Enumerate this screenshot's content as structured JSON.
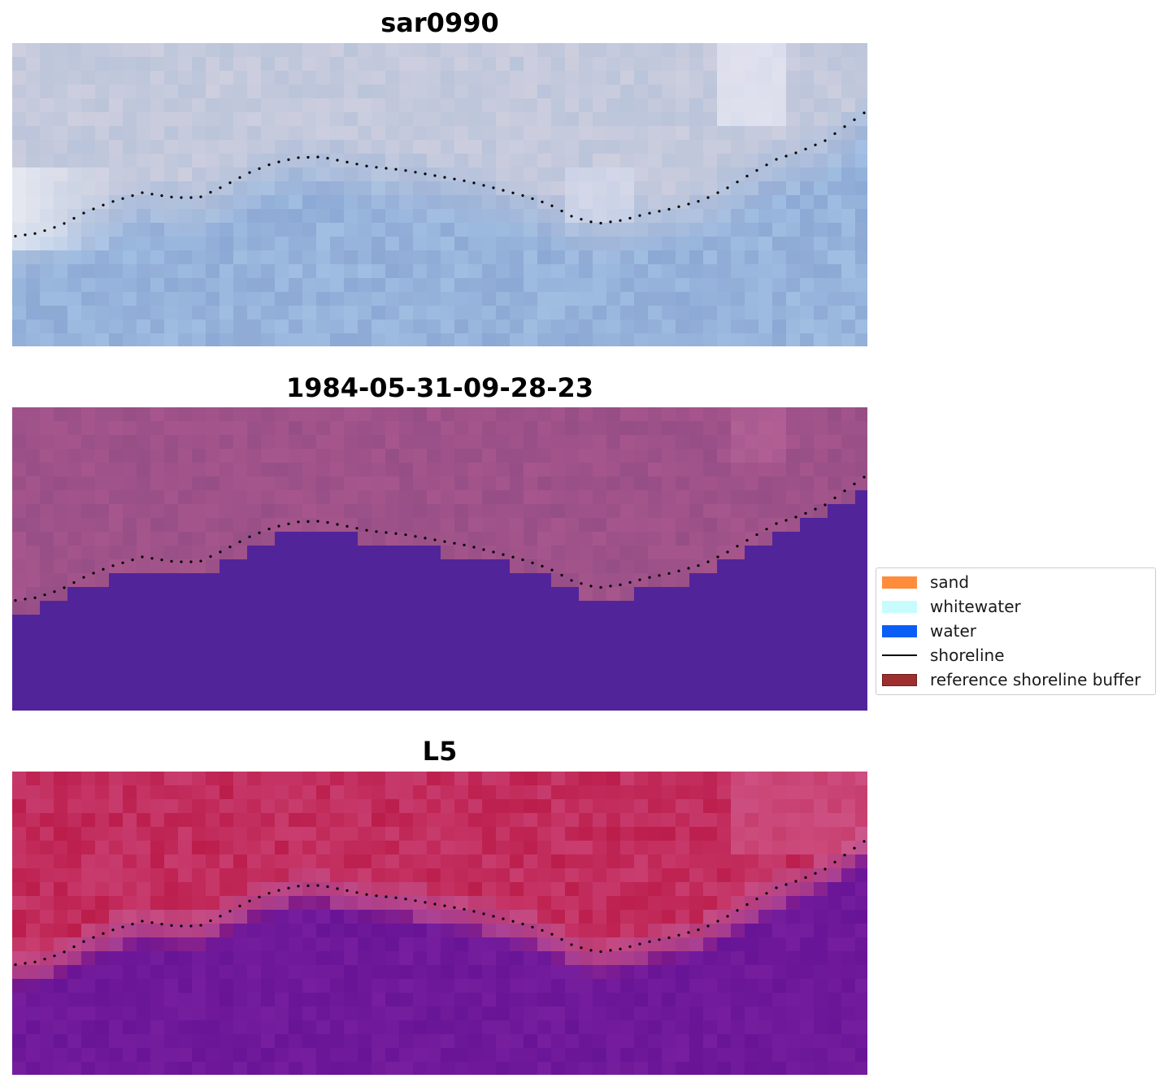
{
  "chart_data": [
    {
      "type": "image",
      "title": "sar0990",
      "image_style": "rgb",
      "colors": {
        "land": "#c9cde0",
        "water": "#93b2d9",
        "shoreline_dots": "#000000"
      }
    },
    {
      "type": "image",
      "title": "1984-05-31-09-28-23",
      "image_style": "classified",
      "colors": {
        "land": "#a3558a",
        "water": "#52249a",
        "shoreline_dots": "#000000"
      }
    },
    {
      "type": "image",
      "title": "L5",
      "image_style": "index",
      "colors": {
        "land": "#bb2150",
        "water": "#6a1898",
        "shoreline_dots": "#000000"
      }
    }
  ],
  "legend": {
    "placement": "center-right",
    "items": [
      {
        "label": "sand",
        "color": "#ff8c3a",
        "kind": "patch"
      },
      {
        "label": "whitewater",
        "color": "#c8fcfc",
        "kind": "patch"
      },
      {
        "label": "water",
        "color": "#0a5ef6",
        "kind": "patch"
      },
      {
        "label": "shoreline",
        "color": "#000000",
        "kind": "line"
      },
      {
        "label": "reference shoreline buffer",
        "color": "#9e2f2f",
        "kind": "patch"
      }
    ]
  }
}
